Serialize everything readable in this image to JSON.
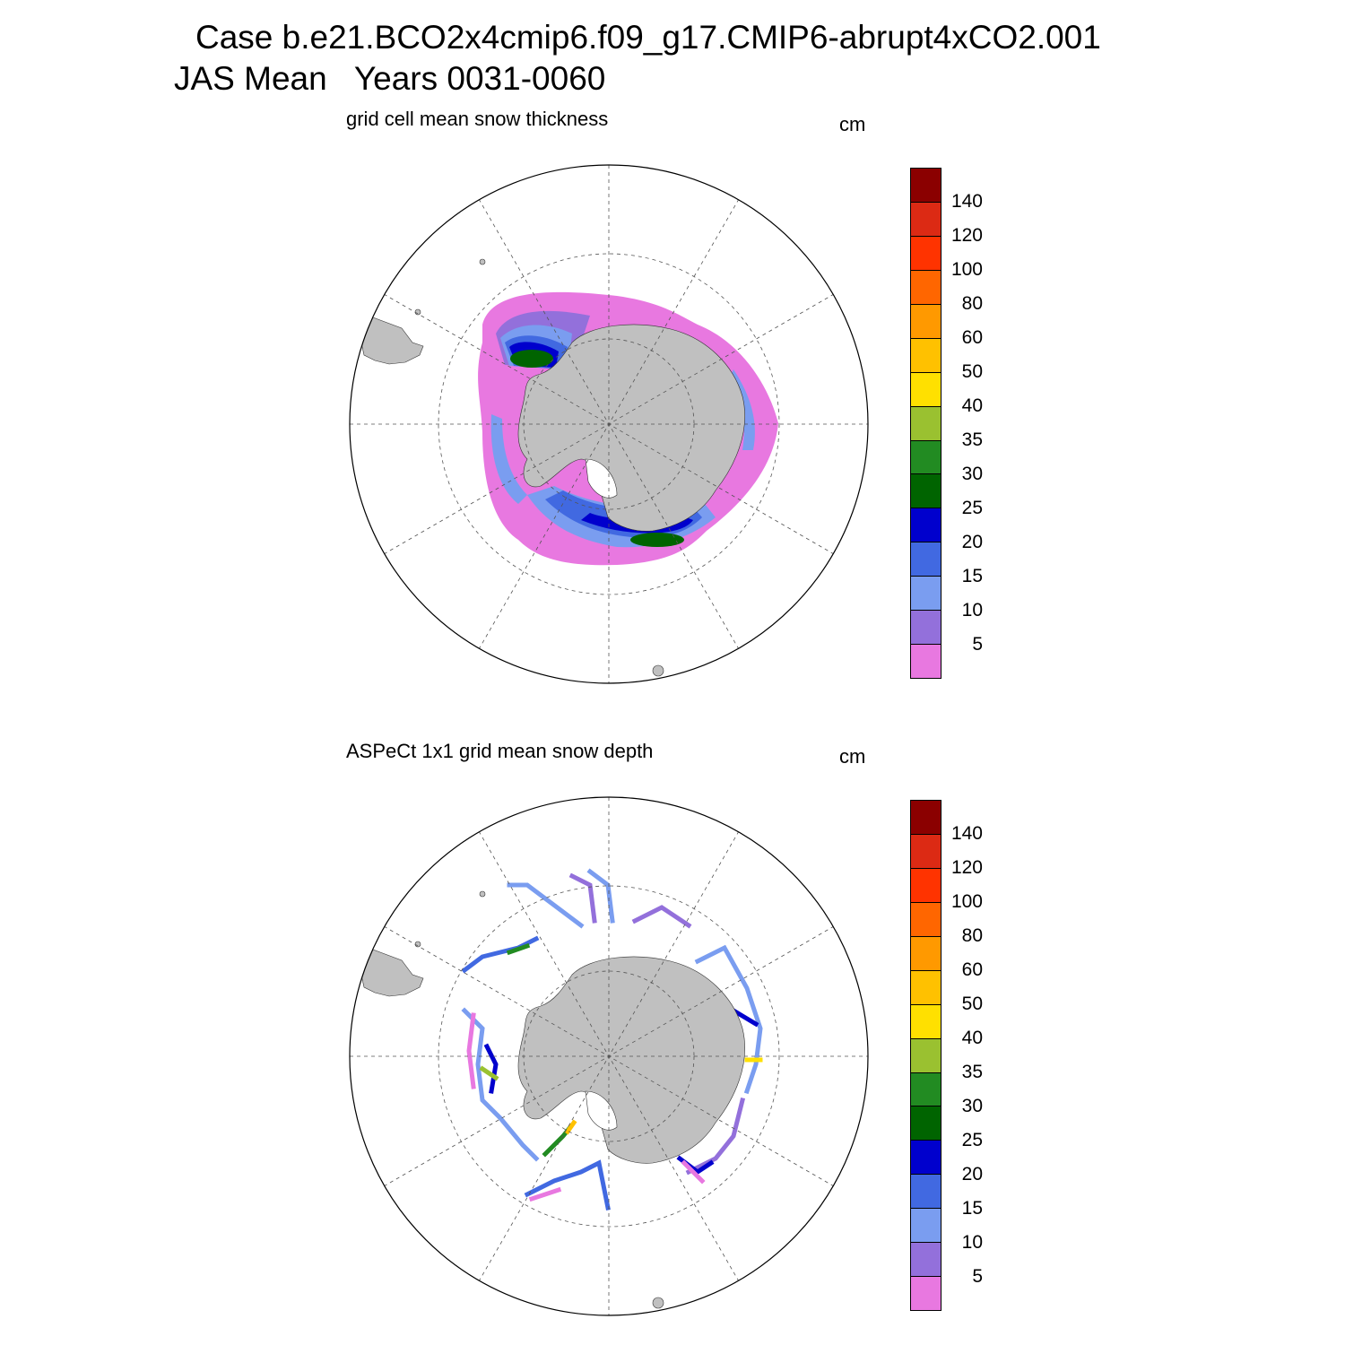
{
  "title": {
    "line1": "Case b.e21.BCO2x4cmip6.f09_g17.CMIP6-abrupt4xCO2.001",
    "line2": "JAS Mean   Years 0031-0060"
  },
  "panels": [
    {
      "id": "model",
      "title": "grid cell mean snow thickness",
      "units": "cm"
    },
    {
      "id": "obs",
      "title": "ASPeCt 1x1 grid mean snow depth",
      "units": "cm"
    }
  ],
  "colorbar": {
    "levels_labels": [
      "140",
      "120",
      "100",
      "80",
      "60",
      "50",
      "40",
      "35",
      "30",
      "25",
      "20",
      "15",
      "10",
      "5"
    ],
    "colors_top_to_bottom": [
      "#8b0000",
      "#dc2a14",
      "#ff3300",
      "#ff6600",
      "#ff9900",
      "#ffc100",
      "#ffe000",
      "#9ac130",
      "#228b22",
      "#006400",
      "#0000cd",
      "#4169e1",
      "#7a9df0",
      "#9370db",
      "#e878e0"
    ]
  },
  "map": {
    "projection": "south-polar-stereographic",
    "land_color": "#c0c0c0",
    "grid": "dashed"
  }
}
